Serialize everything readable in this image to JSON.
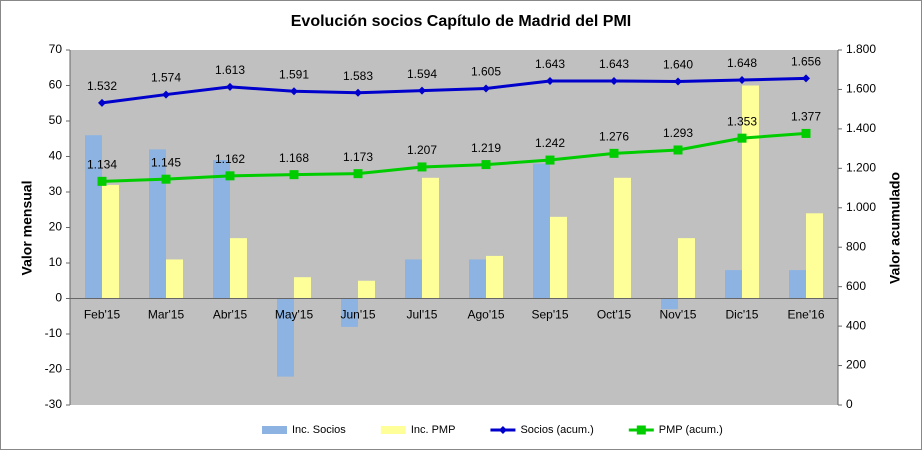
{
  "chart_data": {
    "type": "bar",
    "title": "Evolución socios Capítulo de Madrid del PMI",
    "y_label": "Valor mensual",
    "y2_label": "Valor acumulado",
    "categories": [
      "Feb'15",
      "Mar'15",
      "Abr'15",
      "May'15",
      "Jun'15",
      "Jul'15",
      "Ago'15",
      "Sep'15",
      "Oct'15",
      "Nov'15",
      "Dic'15",
      "Ene'16"
    ],
    "series": [
      {
        "name": "Inc. Socios",
        "type": "bar",
        "color": "#8db3e2",
        "values": [
          46,
          42,
          39,
          -22,
          -8,
          11,
          11,
          38,
          0,
          -3,
          8,
          8
        ]
      },
      {
        "name": "Inc. PMP",
        "type": "bar",
        "color": "#ffff99",
        "values": [
          32,
          11,
          17,
          6,
          5,
          34,
          12,
          23,
          34,
          17,
          60,
          24
        ]
      },
      {
        "name": "Socios (acum.)",
        "type": "line",
        "axis": "y2",
        "marker": "diamond",
        "color": "#0000cc",
        "values": [
          1532,
          1574,
          1613,
          1591,
          1583,
          1594,
          1605,
          1643,
          1643,
          1640,
          1648,
          1656
        ],
        "value_labels": [
          "1.532",
          "1.574",
          "1.613",
          "1.591",
          "1.583",
          "1.594",
          "1.605",
          "1.643",
          "1.643",
          "1.640",
          "1.648",
          "1.656"
        ]
      },
      {
        "name": "PMP (acum.)",
        "type": "line",
        "axis": "y2",
        "marker": "square",
        "color": "#00cc00",
        "values": [
          1134,
          1145,
          1162,
          1168,
          1173,
          1207,
          1219,
          1242,
          1276,
          1293,
          1353,
          1377
        ],
        "value_labels": [
          "1.134",
          "1.145",
          "1.162",
          "1.168",
          "1.173",
          "1.207",
          "1.219",
          "1.242",
          "1.276",
          "1.293",
          "1.353",
          "1.377"
        ]
      }
    ],
    "ylim": [
      -30,
      70
    ],
    "yticks": [
      -30,
      -20,
      -10,
      0,
      10,
      20,
      30,
      40,
      50,
      60,
      70
    ],
    "y2lim": [
      0,
      1800
    ],
    "y2ticks": [
      0,
      200,
      400,
      600,
      800,
      {
        "value": 1000,
        "label": "1.000"
      },
      {
        "value": 1200,
        "label": "1.200"
      },
      {
        "value": 1400,
        "label": "1.400"
      },
      {
        "value": 1600,
        "label": "1.600"
      },
      {
        "value": 1800,
        "label": "1.800"
      }
    ],
    "grid": false,
    "legend": "bottom"
  }
}
